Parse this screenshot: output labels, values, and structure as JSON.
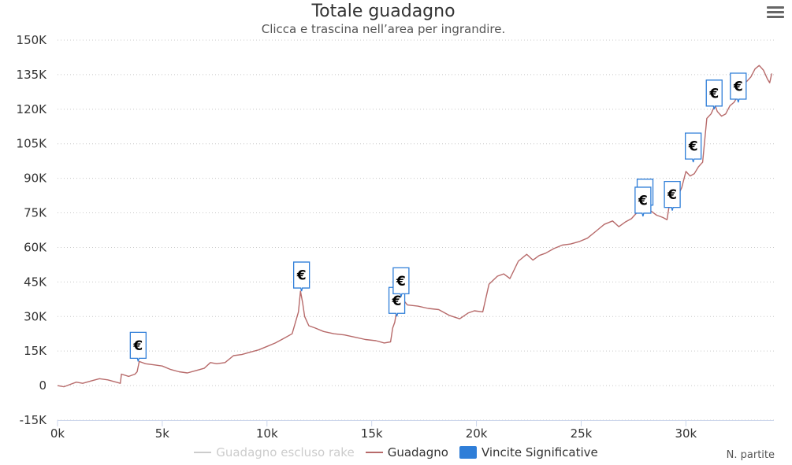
{
  "colors": {
    "line": "#b76a6a",
    "line_disabled": "#cccccc",
    "flag_border": "#2f7ed8",
    "flag_fill": "#ffffff",
    "grid": "#c8c8c8",
    "axis": "#ccd6eb",
    "text": "#333333",
    "legend_disabled_text": "#cccccc",
    "legend_marker_flags": "#2f7ed8"
  },
  "menu": {
    "icon": "hamburger-menu-icon"
  },
  "chart_data": {
    "type": "line",
    "title": "Totale guadagno",
    "subtitle": "Clicca e trascina nell’area per ingrandire.",
    "xlabel": "N. partite",
    "ylabel": "",
    "xlim": [
      0,
      34200
    ],
    "ylim": [
      -15000,
      150000
    ],
    "x_ticks": [
      0,
      5000,
      10000,
      15000,
      20000,
      25000,
      30000
    ],
    "x_tick_labels": [
      "0k",
      "5k",
      "10k",
      "15k",
      "20k",
      "25k",
      "30k"
    ],
    "y_ticks": [
      -15000,
      0,
      15000,
      30000,
      45000,
      60000,
      75000,
      90000,
      105000,
      120000,
      135000,
      150000
    ],
    "y_tick_labels": [
      "-15K",
      "0",
      "15K",
      "30K",
      "45K",
      "60K",
      "75K",
      "90K",
      "105K",
      "120K",
      "135K",
      "150K"
    ],
    "grid": "horizontal dotted",
    "legend_position": "bottom-center",
    "series": [
      {
        "name": "Guadagno escluso rake",
        "visible": false,
        "x": [],
        "y": []
      },
      {
        "name": "Guadagno",
        "visible": true,
        "x": [
          0,
          300,
          600,
          900,
          1200,
          1600,
          2000,
          2400,
          2800,
          3000,
          3050,
          3400,
          3700,
          3800,
          3900,
          4200,
          4600,
          5000,
          5400,
          5800,
          6200,
          6600,
          7000,
          7300,
          7600,
          8000,
          8400,
          8800,
          9200,
          9600,
          10000,
          10400,
          10800,
          11200,
          11500,
          11600,
          11700,
          11800,
          12000,
          12300,
          12700,
          13200,
          13700,
          14200,
          14700,
          15200,
          15600,
          15900,
          16000,
          16100,
          16200,
          16300,
          16400,
          16700,
          17200,
          17700,
          18200,
          18700,
          19200,
          19600,
          19900,
          20300,
          20600,
          21000,
          21300,
          21600,
          22000,
          22400,
          22700,
          23000,
          23300,
          23700,
          24100,
          24500,
          24900,
          25300,
          25700,
          26100,
          26500,
          26800,
          27100,
          27400,
          27700,
          27900,
          28000,
          28100,
          28300,
          28600,
          28900,
          29100,
          29200,
          29300,
          29500,
          29800,
          30000,
          30200,
          30400,
          30600,
          30800,
          31000,
          31200,
          31300,
          31400,
          31500,
          31700,
          31900,
          32100,
          32300,
          32500,
          32600,
          32700,
          32900,
          33100,
          33300,
          33500,
          33700,
          33900,
          34000,
          34100
        ],
        "y": [
          0,
          -500,
          500,
          1500,
          1000,
          2000,
          3000,
          2500,
          1500,
          1000,
          5000,
          4000,
          5000,
          6000,
          10500,
          9500,
          9000,
          8500,
          7000,
          6000,
          5500,
          6500,
          7500,
          10000,
          9500,
          10000,
          13000,
          13500,
          14500,
          15500,
          17000,
          18500,
          20500,
          22500,
          32000,
          41000,
          36000,
          30000,
          26000,
          25000,
          23500,
          22500,
          22000,
          21000,
          20000,
          19500,
          18500,
          19000,
          25000,
          27500,
          33000,
          38000,
          38500,
          35000,
          34500,
          33500,
          33000,
          30500,
          29000,
          31500,
          32500,
          32000,
          44000,
          47500,
          48500,
          46500,
          54000,
          57000,
          54500,
          56500,
          57500,
          59500,
          61000,
          61500,
          62500,
          64000,
          67000,
          70000,
          71500,
          69000,
          71000,
          72500,
          75500,
          77000,
          85000,
          78000,
          76000,
          74000,
          73000,
          72000,
          78000,
          79000,
          80000,
          86000,
          93000,
          91000,
          92000,
          95000,
          97000,
          116000,
          118000,
          120000,
          121500,
          119000,
          117000,
          118000,
          121500,
          123000,
          126000,
          130000,
          131500,
          132000,
          134000,
          137500,
          139000,
          137000,
          133000,
          131500,
          135500
        ]
      }
    ],
    "flags": {
      "name": "Vincite Significative",
      "label": "€",
      "points": [
        {
          "x": 3850,
          "y": 10500
        },
        {
          "x": 11650,
          "y": 41000
        },
        {
          "x": 16200,
          "y": 30000
        },
        {
          "x": 16400,
          "y": 38500
        },
        {
          "x": 28050,
          "y": 77000
        },
        {
          "x": 27950,
          "y": 73500
        },
        {
          "x": 29350,
          "y": 76000
        },
        {
          "x": 30350,
          "y": 97000
        },
        {
          "x": 31350,
          "y": 120000
        },
        {
          "x": 32500,
          "y": 123000
        }
      ]
    }
  }
}
